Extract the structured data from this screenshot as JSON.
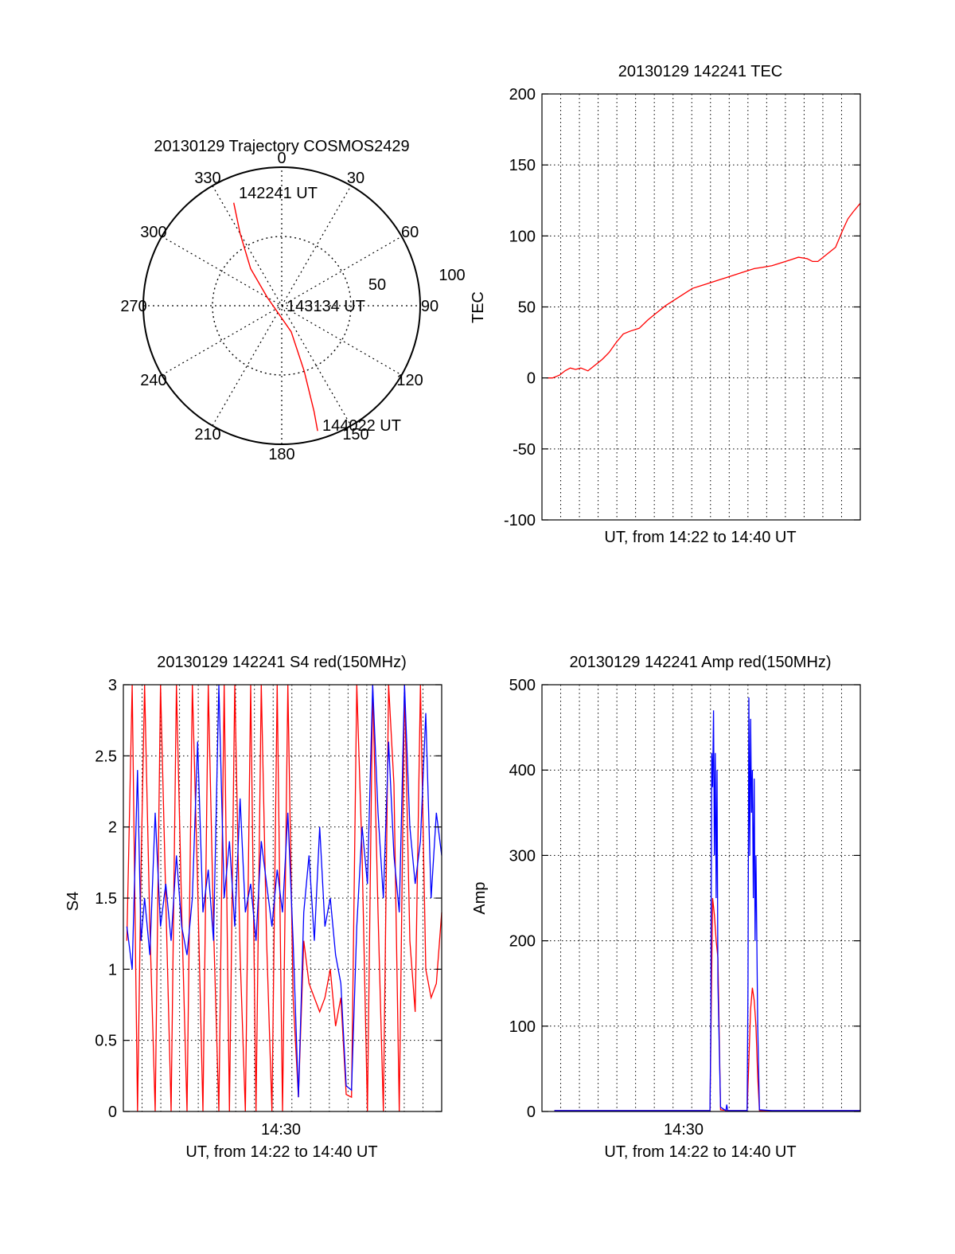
{
  "chart_data": [
    {
      "type": "polar",
      "title": "20130129 Trajectory COSMOS2429",
      "angle_labels": [
        "0",
        "30",
        "60",
        "90",
        "120",
        "150",
        "180",
        "210",
        "240",
        "270",
        "300",
        "330"
      ],
      "radius_labels": [
        "50",
        "100"
      ],
      "trajectory": {
        "color": "#ff0000",
        "points": [
          {
            "az": 335,
            "el_offset": 82
          },
          {
            "az": 330,
            "el_offset": 60
          },
          {
            "az": 320,
            "el_offset": 35
          },
          {
            "az": 300,
            "el_offset": 12
          },
          {
            "az": 160,
            "el_offset": 20
          },
          {
            "az": 161,
            "el_offset": 50
          },
          {
            "az": 163,
            "el_offset": 80
          },
          {
            "az": 164,
            "el_offset": 94
          }
        ],
        "labels": [
          "142241 UT",
          "143134 UT",
          "144022 UT"
        ]
      }
    },
    {
      "type": "line",
      "title": "20130129 142241 TEC",
      "xlabel": "UT, from 14:22 to 14:40 UT",
      "ylabel": "TEC",
      "ylim": [
        -100,
        200
      ],
      "y_ticks": [
        "-100",
        "-50",
        "0",
        "50",
        "100",
        "150",
        "200"
      ],
      "xlim_minutes": [
        0,
        18
      ],
      "grid": true,
      "series": [
        {
          "color": "#ff0000",
          "x": [
            0.3,
            0.6,
            1.0,
            1.3,
            1.6,
            1.9,
            2.2,
            2.6,
            3.0,
            3.4,
            3.8,
            4.2,
            4.6,
            5.0,
            5.5,
            6.0,
            6.5,
            7.0,
            7.5,
            8.0,
            8.5,
            9.0,
            9.5,
            10.0,
            10.5,
            11.0,
            11.5,
            12.0,
            12.5,
            13.0,
            13.5,
            14.0,
            14.5,
            15.0,
            15.3,
            15.6,
            15.9,
            16.2,
            16.6,
            17.0,
            17.3,
            17.6,
            18.0
          ],
          "y": [
            0,
            0,
            2,
            5,
            7,
            6,
            7,
            5,
            9,
            13,
            18,
            25,
            31,
            33,
            35,
            41,
            46,
            51,
            55,
            59,
            63,
            65,
            67,
            69,
            71,
            73,
            75,
            77,
            78,
            79,
            81,
            83,
            85,
            84,
            82,
            82,
            85,
            88,
            92,
            104,
            112,
            117,
            123
          ]
        }
      ]
    },
    {
      "type": "line",
      "title": "20130129 142241 S4 red(150MHz)",
      "xlabel": "UT, from 14:22 to 14:40 UT",
      "ylabel": "S4",
      "ylim": [
        0,
        3
      ],
      "y_ticks": [
        "0",
        "0.5",
        "1",
        "1.5",
        "2",
        "2.5",
        "3"
      ],
      "x_ticks": [
        "14:30"
      ],
      "xlim_minutes": [
        0,
        18
      ],
      "grid": true,
      "series": [
        {
          "color": "#ff0000",
          "x": [
            0.2,
            0.5,
            0.8,
            1.0,
            1.2,
            1.5,
            1.8,
            2.1,
            2.4,
            2.7,
            3.0,
            3.3,
            3.6,
            3.9,
            4.2,
            4.5,
            4.8,
            5.1,
            5.4,
            5.7,
            6.0,
            6.3,
            6.6,
            6.9,
            7.2,
            7.5,
            7.8,
            8.1,
            8.4,
            8.7,
            9.0,
            9.3,
            9.6,
            9.9,
            10.2,
            10.5,
            10.8,
            11.1,
            11.4,
            11.7,
            12.0,
            12.3,
            12.6,
            12.9,
            13.2,
            13.5,
            13.8,
            14.1,
            14.4,
            14.7,
            15.0,
            15.3,
            15.6,
            15.9,
            16.2,
            16.5,
            16.8,
            17.1,
            17.4,
            17.7,
            18.0
          ],
          "y": [
            1.2,
            3,
            0,
            1.7,
            3,
            1.3,
            0,
            3,
            1.5,
            0,
            3,
            1.4,
            0,
            3,
            1.6,
            0,
            3,
            1.3,
            0,
            3,
            0,
            3,
            1.1,
            0,
            3,
            0,
            3,
            1.2,
            0,
            3,
            0,
            3,
            0.8,
            0.1,
            1.2,
            0.9,
            0.8,
            0.7,
            0.8,
            1.0,
            0.6,
            0.8,
            0.12,
            0.1,
            3,
            1.8,
            0,
            3,
            1.4,
            0,
            3,
            2.3,
            0,
            3,
            1.2,
            0.7,
            3,
            1.0,
            0.8,
            0.9,
            1.4
          ]
        },
        {
          "color": "#0000ff",
          "x": [
            0.2,
            0.5,
            0.8,
            1.0,
            1.2,
            1.5,
            1.8,
            2.1,
            2.4,
            2.7,
            3.0,
            3.3,
            3.6,
            3.9,
            4.2,
            4.5,
            4.8,
            5.1,
            5.4,
            5.7,
            6.0,
            6.3,
            6.6,
            6.9,
            7.2,
            7.5,
            7.8,
            8.1,
            8.4,
            8.7,
            9.0,
            9.3,
            9.6,
            9.9,
            10.2,
            10.5,
            10.8,
            11.1,
            11.4,
            11.7,
            12.0,
            12.3,
            12.6,
            12.9,
            13.2,
            13.5,
            13.8,
            14.1,
            14.4,
            14.7,
            15.0,
            15.3,
            15.6,
            15.9,
            16.2,
            16.5,
            16.8,
            17.1,
            17.4,
            17.7,
            18.0
          ],
          "y": [
            1.3,
            1.0,
            2.4,
            1.2,
            1.5,
            1.1,
            2.1,
            1.3,
            1.6,
            1.2,
            1.8,
            1.3,
            1.1,
            1.5,
            2.6,
            1.4,
            1.7,
            1.2,
            3,
            1.5,
            1.9,
            1.3,
            2.2,
            1.4,
            1.6,
            1.2,
            1.9,
            1.6,
            1.3,
            1.7,
            1.4,
            2.1,
            1.2,
            0.1,
            1.4,
            1.8,
            1.2,
            2.0,
            1.3,
            1.5,
            1.1,
            0.9,
            0.18,
            0.15,
            1.3,
            2.0,
            1.6,
            3,
            2.1,
            1.5,
            2.6,
            1.8,
            1.4,
            3,
            2.0,
            1.6,
            1.9,
            2.8,
            1.5,
            2.1,
            1.8
          ]
        }
      ]
    },
    {
      "type": "line",
      "title": "20130129 142241 Amp red(150MHz)",
      "xlabel": "UT, from 14:22 to 14:40 UT",
      "ylabel": "Amp",
      "ylim": [
        0,
        500
      ],
      "y_ticks": [
        "0",
        "100",
        "200",
        "300",
        "400",
        "500"
      ],
      "x_ticks": [
        "14:30"
      ],
      "xlim_minutes": [
        0,
        18
      ],
      "grid": true,
      "series": [
        {
          "color": "#ff0000",
          "x": [
            0.7,
            9.0,
            9.5,
            9.55,
            9.65,
            9.75,
            9.85,
            9.95,
            10.1,
            10.5,
            11.0,
            11.6,
            11.7,
            11.8,
            11.9,
            12.0,
            12.1,
            12.2,
            12.3,
            13.0,
            18.0
          ],
          "y": [
            1,
            1,
            1,
            80,
            250,
            230,
            200,
            180,
            2,
            1,
            1,
            1,
            60,
            120,
            145,
            130,
            100,
            40,
            1,
            1,
            1
          ]
        },
        {
          "color": "#0000ff",
          "x": [
            0.7,
            9.0,
            9.5,
            9.55,
            9.6,
            9.65,
            9.7,
            9.75,
            9.8,
            9.85,
            9.9,
            9.95,
            10.1,
            10.4,
            10.45,
            10.5,
            11.0,
            11.6,
            11.65,
            11.7,
            11.75,
            11.8,
            11.85,
            11.9,
            11.95,
            12.0,
            12.05,
            12.1,
            12.2,
            12.3,
            13.0,
            18.0
          ],
          "y": [
            1,
            1,
            1,
            100,
            420,
            380,
            470,
            300,
            420,
            250,
            400,
            150,
            5,
            1,
            8,
            1,
            1,
            1,
            150,
            485,
            300,
            460,
            350,
            400,
            250,
            390,
            200,
            300,
            100,
            2,
            1,
            1
          ]
        }
      ]
    }
  ]
}
